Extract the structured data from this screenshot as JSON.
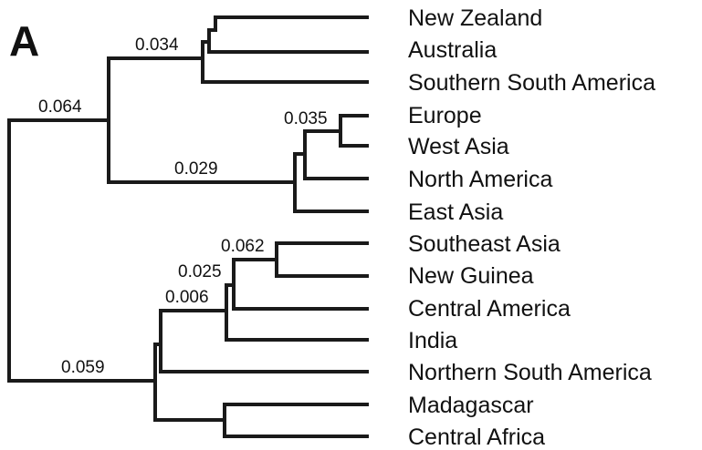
{
  "panel_label": "A",
  "taxa": {
    "new_zealand": "New Zealand",
    "australia": "Australia",
    "southern_south_america": "Southern South America",
    "europe": "Europe",
    "west_asia": "West Asia",
    "north_america": "North America",
    "east_asia": "East Asia",
    "southeast_asia": "Southeast Asia",
    "new_guinea": "New Guinea",
    "central_america": "Central America",
    "india": "India",
    "northern_south_america": "Northern South America",
    "madagascar": "Madagascar",
    "central_africa": "Central Africa"
  },
  "node_values": {
    "austral_clade": "0.034",
    "southern_group": "0.064",
    "europe_west_asia": "0.035",
    "holarctic_clade": "0.029",
    "southeast_asia_new_guinea": "0.062",
    "with_central_america": "0.025",
    "with_india": "0.006",
    "tropical_group": "0.059"
  },
  "colors": {
    "branch": "#1a1a1a",
    "text": "#111111",
    "background": "#ffffff"
  }
}
